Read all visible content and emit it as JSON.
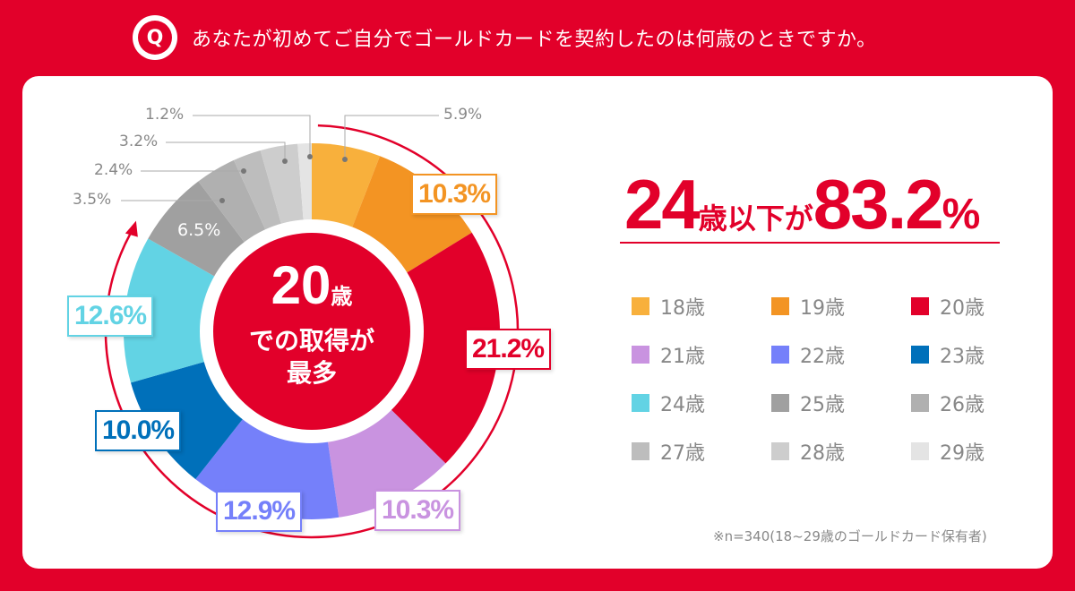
{
  "header": {
    "q_label": "Q",
    "title": "あなたが初めてご自分でゴールドカードを契約したのは何歳のときですか。"
  },
  "center": {
    "age": "20",
    "unit": "歳",
    "line2": "での取得が",
    "line3": "最多"
  },
  "headline": {
    "num": "24",
    "mid": "歳以下が",
    "pct": "83.2",
    "pct_sign": "%"
  },
  "note": "※n=340(18~29歳のゴールドカード保有者)",
  "chart_data": {
    "type": "pie",
    "donut": true,
    "categories": [
      "18歳",
      "19歳",
      "20歳",
      "21歳",
      "22歳",
      "23歳",
      "24歳",
      "25歳",
      "26歳",
      "27歳",
      "28歳",
      "29歳"
    ],
    "values": [
      5.9,
      10.3,
      21.2,
      10.3,
      12.9,
      10.0,
      12.6,
      6.5,
      3.5,
      2.4,
      3.2,
      1.2
    ],
    "labels": [
      "5.9%",
      "10.3%",
      "21.2%",
      "10.3%",
      "12.9%",
      "10.0%",
      "12.6%",
      "6.5%",
      "3.5%",
      "2.4%",
      "3.2%",
      "1.2%"
    ],
    "colors": [
      "#F8B03C",
      "#F39423",
      "#E2002A",
      "#C993E0",
      "#7580FA",
      "#0070BA",
      "#62D3E4",
      "#A0A0A0",
      "#B0B0B0",
      "#BDBDBD",
      "#CDCDCD",
      "#E4E4E4"
    ],
    "highlight_cumulative_pct": 83.2,
    "legend_placement": "right"
  }
}
